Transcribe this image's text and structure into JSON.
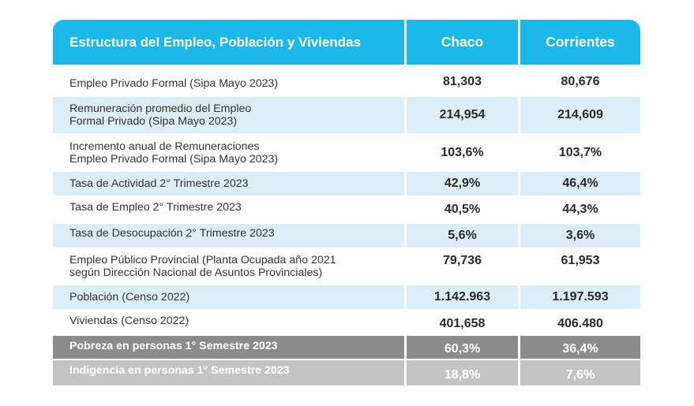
{
  "header": {
    "title": "Estructura del Empleo, Población y Viviendas",
    "col_chaco": "Chaco",
    "col_corrientes": "Corrientes"
  },
  "colors": {
    "header_bg": "#1ab9ea",
    "row_blue": "#dbeef8",
    "row_dark": "#8c8c8c",
    "row_light": "#c4c4c4"
  },
  "rows": [
    {
      "label_1": "Empleo Privado Formal (Sipa Mayo 2023)",
      "label_2": "",
      "chaco": "81,303",
      "corrientes": "80,676"
    },
    {
      "label_1": "Remuneración promedio del Empleo",
      "label_2": "Formal Privado (Sipa Mayo 2023)",
      "chaco": "214,954",
      "corrientes": "214,609"
    },
    {
      "label_1": "Incremento anual de Remuneraciones",
      "label_2": "Empleo Privado Formal (Sipa Mayo 2023)",
      "chaco": "103,6%",
      "corrientes": "103,7%"
    },
    {
      "label_1": "Tasa de Actividad 2° Trimestre 2023",
      "label_2": "",
      "chaco": "42,9%",
      "corrientes": "46,4%"
    },
    {
      "label_1": "Tasa de Empleo 2° Trimestre 2023",
      "label_2": "",
      "chaco": "40,5%",
      "corrientes": "44,3%"
    },
    {
      "label_1": "Tasa de Desocupación 2° Trimestre 2023",
      "label_2": "",
      "chaco": "5,6%",
      "corrientes": "3,6%"
    },
    {
      "label_1": "Empleo Público Provincial (Planta Ocupada año 2021",
      "label_2": "según Dirección Nacional de Asuntos Provinciales)",
      "chaco": "79,736",
      "corrientes": "61,953"
    },
    {
      "label_1": "Población (Censo 2022)",
      "label_2": "",
      "chaco": "1.142.963",
      "corrientes": "1.197.593"
    },
    {
      "label_1": "Viviendas (Censo 2022)",
      "label_2": "",
      "chaco": "401,658",
      "corrientes": "406.480"
    },
    {
      "label_1": "Pobreza en personas 1° Semestre 2023",
      "label_2": "",
      "chaco": "60,3%",
      "corrientes": "36,4%"
    },
    {
      "label_1": "Indigencia en personas 1° Semestre 2023",
      "label_2": "",
      "chaco": "18,8%",
      "corrientes": "7,6%"
    }
  ]
}
